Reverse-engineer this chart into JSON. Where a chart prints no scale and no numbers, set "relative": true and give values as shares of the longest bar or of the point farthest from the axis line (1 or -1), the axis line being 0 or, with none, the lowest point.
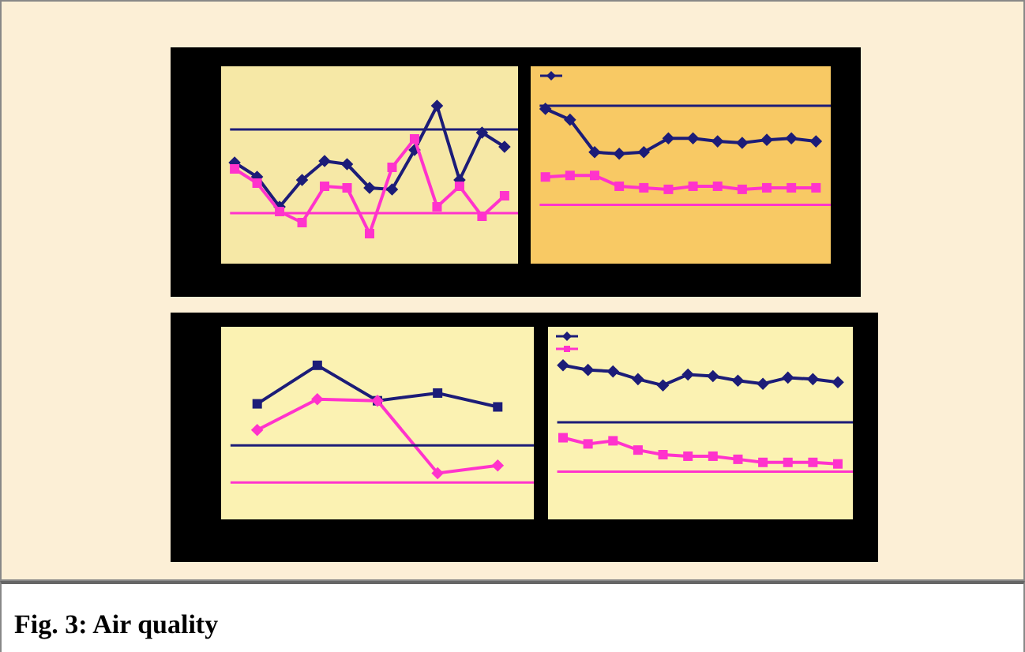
{
  "chart_data": [
    {
      "type": "line",
      "relative": true,
      "categories": [
        null,
        null,
        null,
        null,
        null,
        null,
        null,
        null,
        null,
        null,
        null,
        null,
        null
      ],
      "series": [
        {
          "color": "#1c1c78",
          "marker": "diamond",
          "values": [
            0.64,
            0.55,
            0.36,
            0.53,
            0.65,
            0.63,
            0.48,
            0.47,
            0.72,
            1,
            0.53,
            0.83,
            0.74
          ]
        },
        {
          "color": "#ff33cc",
          "marker": "square",
          "values": [
            0.6,
            0.51,
            0.33,
            0.26,
            0.49,
            0.48,
            0.19,
            0.61,
            0.79,
            0.36,
            0.49,
            0.3,
            0.43
          ]
        }
      ],
      "ref_lines": [
        {
          "axis": "y",
          "value": 0.85,
          "color": "#1c1c78"
        },
        {
          "axis": "y",
          "value": 0.32,
          "color": "#ff33cc"
        }
      ]
    },
    {
      "type": "line",
      "relative": true,
      "categories": [
        null,
        null,
        null,
        null,
        null,
        null,
        null,
        null,
        null,
        null,
        null,
        null
      ],
      "series": [
        {
          "color": "#1c1c78",
          "marker": "diamond",
          "values": [
            1,
            0.93,
            0.72,
            0.71,
            0.72,
            0.81,
            0.81,
            0.79,
            0.78,
            0.8,
            0.81,
            0.79
          ]
        },
        {
          "color": "#ff33cc",
          "marker": "square",
          "values": [
            0.56,
            0.57,
            0.57,
            0.5,
            0.49,
            0.48,
            0.5,
            0.5,
            0.48,
            0.49,
            0.49,
            0.49
          ]
        }
      ],
      "ref_lines": [
        {
          "axis": "y",
          "value": 1.02,
          "color": "#1c1c78"
        },
        {
          "axis": "y",
          "value": 0.38,
          "color": "#ff33cc"
        }
      ]
    },
    {
      "type": "line",
      "relative": true,
      "categories": [
        null,
        null,
        null,
        null,
        null
      ],
      "series": [
        {
          "color": "#1c1c78",
          "marker": "square",
          "values": [
            0.75,
            1,
            0.77,
            0.82,
            0.73
          ]
        },
        {
          "color": "#ff33cc",
          "marker": "diamond",
          "values": [
            0.58,
            0.78,
            0.77,
            0.3,
            0.35
          ]
        }
      ],
      "ref_lines": [
        {
          "axis": "y",
          "value": 0.48,
          "color": "#1c1c78"
        },
        {
          "axis": "y",
          "value": 0.24,
          "color": "#ff33cc"
        }
      ]
    },
    {
      "type": "line",
      "relative": true,
      "categories": [
        null,
        null,
        null,
        null,
        null,
        null,
        null,
        null,
        null,
        null,
        null,
        null
      ],
      "series": [
        {
          "color": "#1c1c78",
          "marker": "diamond",
          "values": [
            1,
            0.97,
            0.96,
            0.91,
            0.87,
            0.94,
            0.93,
            0.9,
            0.88,
            0.92,
            0.91,
            0.89
          ]
        },
        {
          "color": "#ff33cc",
          "marker": "square",
          "values": [
            0.53,
            0.49,
            0.51,
            0.45,
            0.42,
            0.41,
            0.41,
            0.39,
            0.37,
            0.37,
            0.37,
            0.36
          ]
        }
      ],
      "ref_lines": [
        {
          "axis": "y",
          "value": 0.63,
          "color": "#1c1c78"
        },
        {
          "axis": "y",
          "value": 0.31,
          "color": "#ff33cc"
        }
      ]
    },
    {
      "type": "other",
      "title": "Fig. 3: Air quality"
    }
  ]
}
